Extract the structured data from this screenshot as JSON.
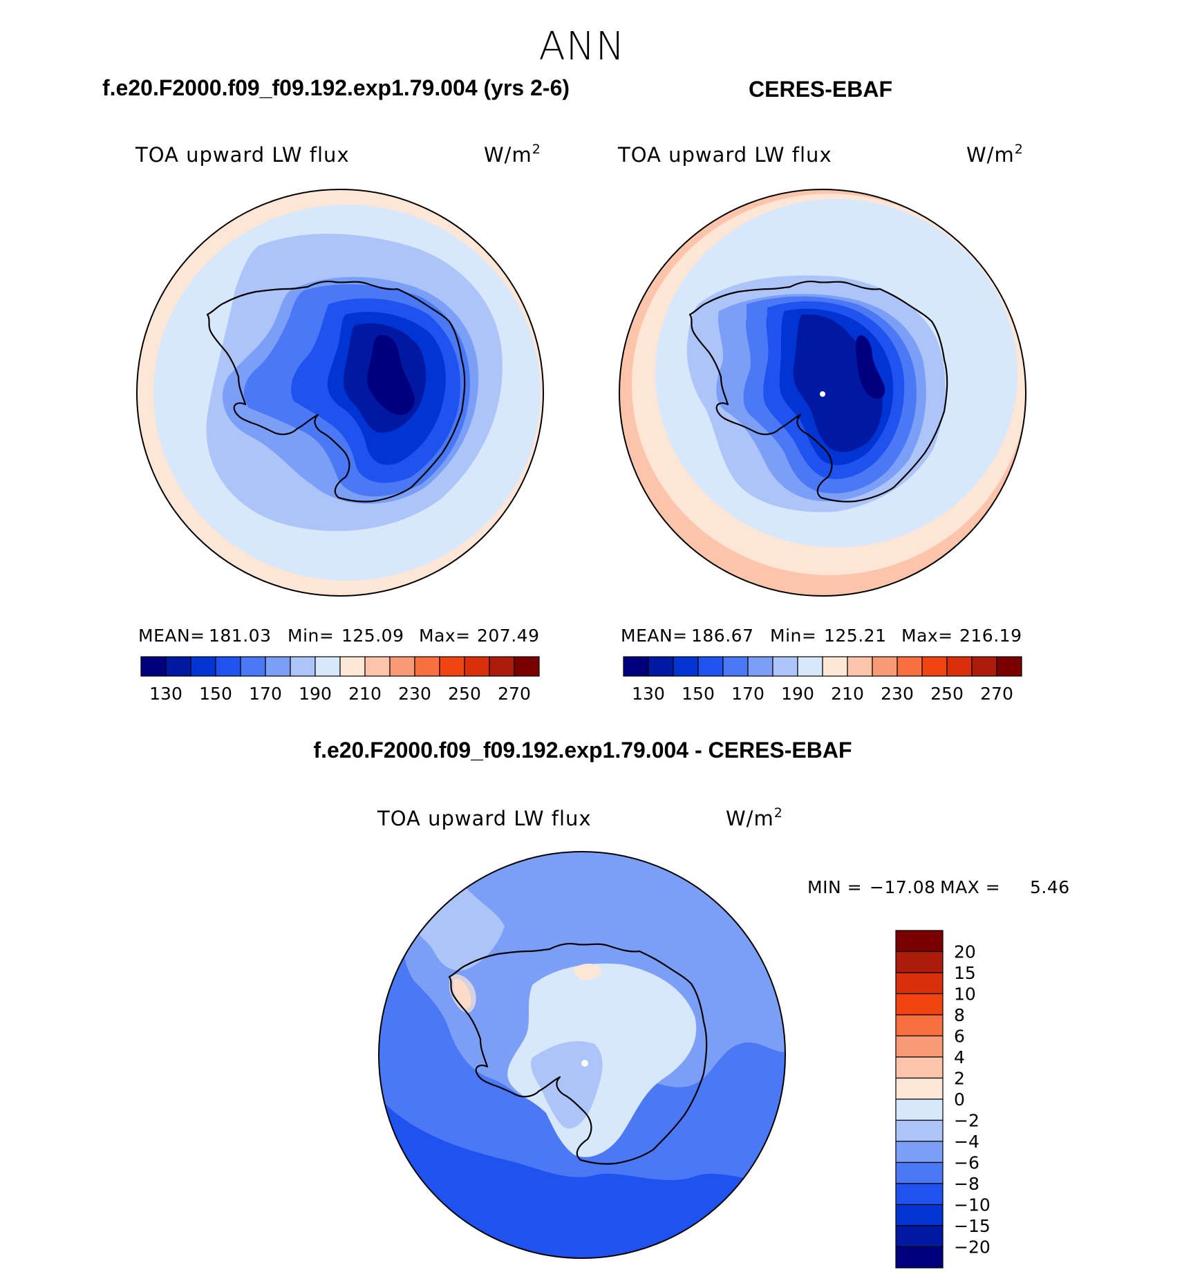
{
  "chart_data": [
    {
      "type": "polar-map",
      "panel": "test",
      "title": "f.e20.F2000.f09_f09.192.exp1.79.004 (yrs 2-6)",
      "label_left": "TOA upward LW flux",
      "units": "W/m",
      "units_exp": "2",
      "stats": {
        "mean_label": "MEAN=",
        "mean": "181.03",
        "min_label": "Min=",
        "min": "125.09",
        "max_label": "Max=",
        "max": "207.49"
      },
      "colorbar": {
        "colors": [
          "#00007f",
          "#0019a3",
          "#0035d3",
          "#1f53f0",
          "#4b78f4",
          "#7b9ff6",
          "#adc4f9",
          "#d7e7fc",
          "#fde6d6",
          "#fcc4aa",
          "#f99a76",
          "#f8703f",
          "#f24410",
          "#d9300b",
          "#ad1c0a",
          "#7a0000"
        ],
        "ticks": [
          "130",
          "150",
          "170",
          "190",
          "210",
          "230",
          "250",
          "270"
        ],
        "tick_positions": [
          1,
          3,
          5,
          7,
          9,
          11,
          13,
          15
        ]
      }
    },
    {
      "type": "polar-map",
      "panel": "obs",
      "title": "CERES-EBAF",
      "label_left": "TOA upward LW flux",
      "units": "W/m",
      "units_exp": "2",
      "stats": {
        "mean_label": "MEAN=",
        "mean": "186.67",
        "min_label": "Min=",
        "min": "125.21",
        "max_label": "Max=",
        "max": "216.19"
      },
      "colorbar": {
        "colors": [
          "#00007f",
          "#0019a3",
          "#0035d3",
          "#1f53f0",
          "#4b78f4",
          "#7b9ff6",
          "#adc4f9",
          "#d7e7fc",
          "#fde6d6",
          "#fcc4aa",
          "#f99a76",
          "#f8703f",
          "#f24410",
          "#d9300b",
          "#ad1c0a",
          "#7a0000"
        ],
        "ticks": [
          "130",
          "150",
          "170",
          "190",
          "210",
          "230",
          "250",
          "270"
        ],
        "tick_positions": [
          1,
          3,
          5,
          7,
          9,
          11,
          13,
          15
        ]
      }
    },
    {
      "type": "polar-map",
      "panel": "diff",
      "title": "f.e20.F2000.f09_f09.192.exp1.79.004 - CERES-EBAF",
      "label_left": "TOA upward LW flux",
      "units": "W/m",
      "units_exp": "2",
      "minmax": {
        "min_label": "MIN =",
        "min": "−17.08",
        "max_label": "MAX =",
        "max": "5.46"
      },
      "colorbar": {
        "colors_top_to_bottom": [
          "#7a0000",
          "#ad1c0a",
          "#d9300b",
          "#f24410",
          "#f8703f",
          "#f99a76",
          "#fcc4aa",
          "#fde6d6",
          "#d7e7fc",
          "#adc4f9",
          "#7b9ff6",
          "#4b78f4",
          "#1f53f0",
          "#0035d3",
          "#0019a3",
          "#00007f"
        ],
        "ticks": [
          "20",
          "15",
          "10",
          "8",
          "6",
          "4",
          "2",
          "0",
          "−2",
          "−4",
          "−6",
          "−8",
          "−10",
          "−15",
          "−20"
        ]
      }
    }
  ],
  "figure": {
    "title": "ANN"
  }
}
